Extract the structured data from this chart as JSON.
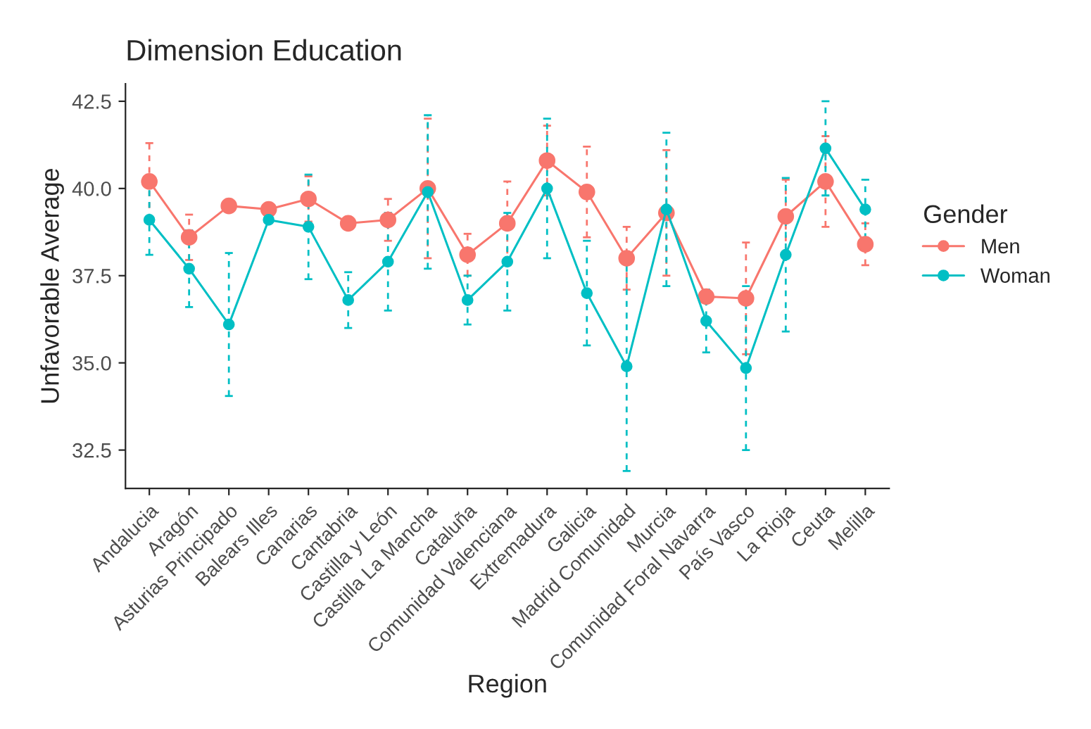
{
  "chart_data": {
    "type": "line",
    "title": "Dimension Education",
    "xlabel": "Region",
    "ylabel": "Unfavorable Average",
    "legend_title": "Gender",
    "legend": "right",
    "marker": "circle",
    "line_style": "solid",
    "grid": false,
    "categories": [
      "Andalucia",
      "Aragón",
      "Asturias Principado",
      "Balears Illes",
      "Canarias",
      "Cantabria",
      "Castilla y León",
      "Castilla La Mancha",
      "Cataluña",
      "Comunidad Valenciana",
      "Extremadura",
      "Galicia",
      "Madrid Comunidad",
      "Murcia",
      "Comunidad Foral Navarra",
      "País Vasco",
      "La Rioja",
      "Ceuta",
      "Melilla"
    ],
    "ylim": [
      31.4,
      43.0
    ],
    "yticks": [
      {
        "value": 32.5,
        "label": "32.5"
      },
      {
        "value": 35.0,
        "label": "35.0"
      },
      {
        "value": 37.5,
        "label": "37.5"
      },
      {
        "value": 40.0,
        "label": "40.0"
      },
      {
        "value": 42.5,
        "label": "42.5"
      }
    ],
    "series": [
      {
        "name": "Men",
        "color": "#f8766d",
        "values": [
          40.2,
          38.6,
          39.5,
          39.4,
          39.7,
          39.0,
          39.1,
          40.0,
          38.1,
          39.0,
          40.8,
          39.9,
          38.0,
          39.3,
          36.9,
          36.85,
          39.2,
          40.2,
          38.4
        ],
        "errors": [
          1.1,
          0.65,
          null,
          null,
          0.65,
          null,
          0.6,
          2.0,
          0.6,
          1.2,
          1.0,
          1.3,
          0.9,
          1.8,
          null,
          1.6,
          1.05,
          1.3,
          0.6
        ]
      },
      {
        "name": "Woman",
        "color": "#00bfc4",
        "values": [
          39.1,
          37.7,
          36.1,
          39.1,
          38.9,
          36.8,
          37.9,
          39.9,
          36.8,
          37.9,
          40.0,
          37.0,
          34.9,
          39.4,
          36.2,
          34.85,
          38.1,
          41.15,
          39.4
        ],
        "errors": [
          1.0,
          1.1,
          2.05,
          null,
          1.5,
          0.8,
          1.4,
          2.2,
          0.7,
          1.4,
          2.0,
          1.5,
          3.0,
          2.2,
          0.9,
          2.35,
          2.2,
          1.35,
          0.85
        ]
      }
    ]
  }
}
